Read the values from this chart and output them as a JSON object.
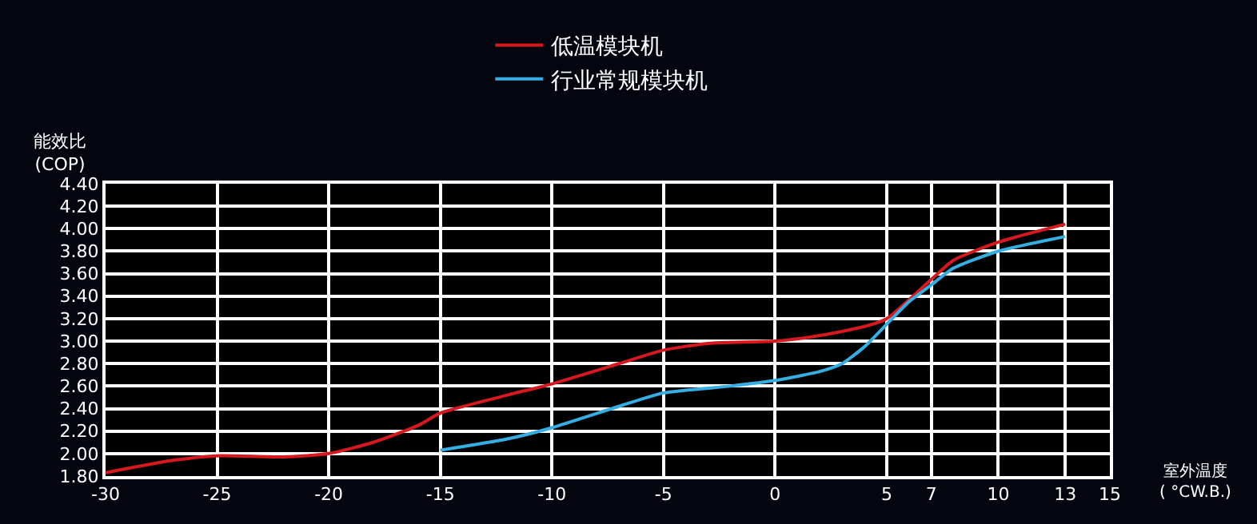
{
  "chart_data": {
    "type": "line",
    "xlabel": "室外温度\n( °CW.B.)",
    "ylabel": "能效比\n(COP)",
    "xlim": [
      -30,
      15
    ],
    "xticks": [
      -30,
      -25,
      -20,
      -15,
      -10,
      -5,
      0,
      5,
      7,
      10,
      13,
      15
    ],
    "ylim": [
      1.8,
      4.4
    ],
    "yticks": [
      {
        "value": 1.8,
        "label": "1.80"
      },
      {
        "value": 2.0,
        "label": "2.00"
      },
      {
        "value": 2.2,
        "label": "2.20"
      },
      {
        "value": 2.4,
        "label": "2.40"
      },
      {
        "value": 2.6,
        "label": "2.60"
      },
      {
        "value": 2.8,
        "label": "2.80"
      },
      {
        "value": 3.0,
        "label": "3.00"
      },
      {
        "value": 3.2,
        "label": "3.20"
      },
      {
        "value": 3.4,
        "label": "3.40"
      },
      {
        "value": 3.6,
        "label": "3.60"
      },
      {
        "value": 3.8,
        "label": "3.80"
      },
      {
        "value": 4.0,
        "label": "4.00"
      },
      {
        "value": 4.2,
        "label": "4.20"
      },
      {
        "value": 4.4,
        "label": "4.40"
      }
    ],
    "grid": true,
    "legend": "top",
    "marker": "none",
    "line_style": "solid",
    "series": [
      {
        "name": "低温模块机",
        "color": "#d7191f",
        "x": [
          -30,
          -27,
          -25,
          -22,
          -20,
          -18,
          -16,
          -15,
          -12,
          -10,
          -7,
          -5,
          -3,
          0,
          2,
          4,
          5,
          7,
          8,
          10,
          13
        ],
        "values": [
          1.83,
          1.94,
          1.98,
          1.97,
          2.0,
          2.1,
          2.25,
          2.36,
          2.52,
          2.62,
          2.8,
          2.92,
          2.98,
          3.0,
          3.05,
          3.13,
          3.2,
          3.55,
          3.72,
          3.88,
          4.04
        ]
      },
      {
        "name": "行业常规模块机",
        "color": "#35aee3",
        "x": [
          -15,
          -12,
          -10,
          -7,
          -5,
          -2,
          0,
          2,
          3,
          4,
          5,
          6,
          7,
          8,
          10,
          13
        ],
        "values": [
          2.03,
          2.13,
          2.23,
          2.42,
          2.54,
          2.6,
          2.65,
          2.73,
          2.8,
          2.95,
          3.15,
          3.35,
          3.5,
          3.65,
          3.8,
          3.93
        ]
      }
    ]
  }
}
